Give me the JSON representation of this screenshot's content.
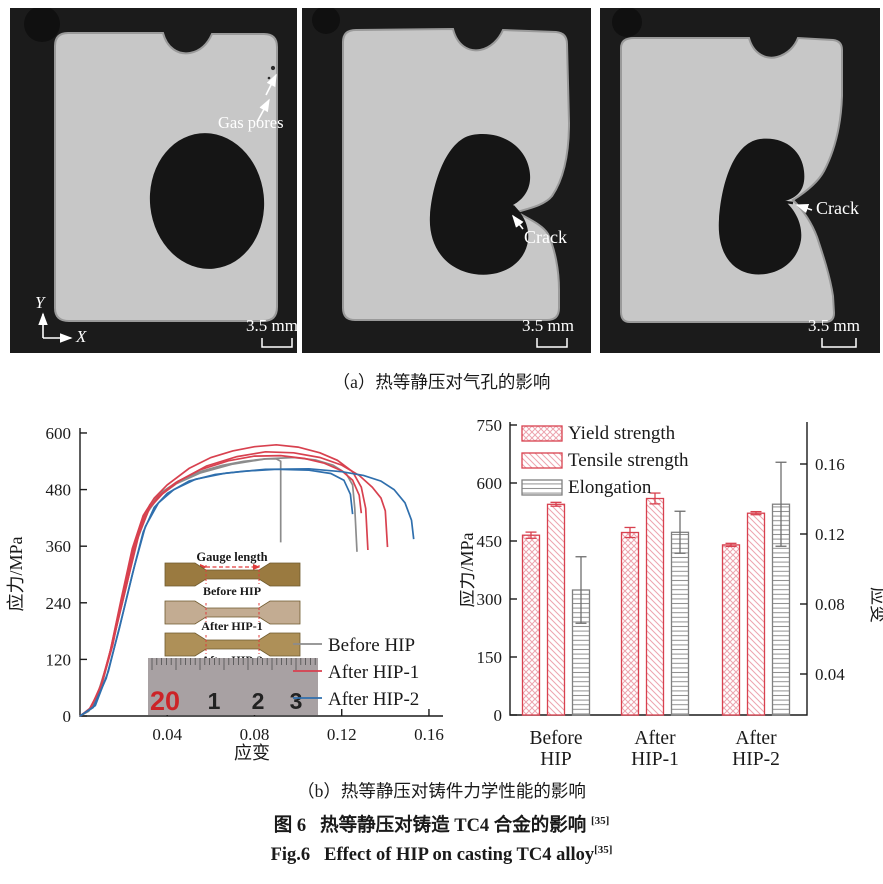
{
  "figure": {
    "captions": {
      "a": "（a）热等静压对气孔的影响",
      "b": "（b）热等静压对铸件力学性能的影响",
      "fig_cn": {
        "prefix": "图 6",
        "text": "热等静压对铸造 TC4 合金的影响",
        "ref": "[35]"
      },
      "fig_en": {
        "prefix": "Fig.6",
        "text": "Effect of HIP on casting TC4 alloy",
        "ref": "[35]"
      }
    }
  },
  "ct_panels": [
    {
      "name": "before-hip",
      "labels": {
        "gas_pores": "Gas pores"
      },
      "scale_bar": "3.5 mm",
      "axes": {
        "x": "X",
        "y": "Y"
      }
    },
    {
      "name": "after-hip-1",
      "labels": {
        "crack": "Crack"
      },
      "scale_bar": "3.5 mm"
    },
    {
      "name": "after-hip-2",
      "labels": {
        "crack": "Crack"
      },
      "scale_bar": "3.5 mm"
    }
  ],
  "inset": {
    "gauge_label": "Gauge length",
    "specimen_labels": [
      "Before HIP",
      "After HIP-1",
      "After HIP-2"
    ],
    "specimen_colors": [
      "#9a7a40",
      "#c3ac92",
      "#ae9058"
    ],
    "ruler_numbers": [
      "20",
      "1",
      "2",
      "3"
    ]
  },
  "chart_data": [
    {
      "type": "line",
      "title": "",
      "xlabel": "应变",
      "ylabel": "应力/MPa",
      "xlim": [
        0,
        0.165
      ],
      "ylim": [
        0,
        600
      ],
      "xticks": [
        0.04,
        0.08,
        0.12,
        0.16
      ],
      "yticks": [
        0,
        120,
        240,
        360,
        480,
        600
      ],
      "grid": false,
      "legend_position": "lower right",
      "series": [
        {
          "name": "Before HIP",
          "color": "#8c8c8c",
          "curves": [
            [
              [
                0,
                0
              ],
              [
                0.004,
                10
              ],
              [
                0.008,
                45
              ],
              [
                0.013,
                120
              ],
              [
                0.018,
                225
              ],
              [
                0.023,
                330
              ],
              [
                0.028,
                405
              ],
              [
                0.032,
                448
              ],
              [
                0.037,
                473
              ],
              [
                0.045,
                498
              ],
              [
                0.055,
                518
              ],
              [
                0.065,
                531
              ],
              [
                0.075,
                540
              ],
              [
                0.085,
                545
              ],
              [
                0.09,
                545
              ],
              [
                0.092,
                540
              ],
              [
                0.092,
                368
              ]
            ],
            [
              [
                0,
                0
              ],
              [
                0.005,
                15
              ],
              [
                0.01,
                65
              ],
              [
                0.015,
                155
              ],
              [
                0.021,
                270
              ],
              [
                0.026,
                370
              ],
              [
                0.031,
                432
              ],
              [
                0.036,
                465
              ],
              [
                0.044,
                492
              ],
              [
                0.055,
                515
              ],
              [
                0.07,
                534
              ],
              [
                0.085,
                545
              ],
              [
                0.098,
                548
              ],
              [
                0.108,
                543
              ],
              [
                0.116,
                532
              ],
              [
                0.122,
                514
              ],
              [
                0.125,
                490
              ],
              [
                0.126,
                440
              ],
              [
                0.127,
                348
              ]
            ]
          ]
        },
        {
          "name": "After HIP-1",
          "color": "#d8414f",
          "curves": [
            [
              [
                0,
                0
              ],
              [
                0.004,
                12
              ],
              [
                0.009,
                55
              ],
              [
                0.014,
                140
              ],
              [
                0.019,
                250
              ],
              [
                0.024,
                355
              ],
              [
                0.029,
                425
              ],
              [
                0.034,
                462
              ],
              [
                0.04,
                490
              ],
              [
                0.05,
                525
              ],
              [
                0.06,
                548
              ],
              [
                0.07,
                562
              ],
              [
                0.08,
                571
              ],
              [
                0.09,
                575
              ],
              [
                0.1,
                570
              ],
              [
                0.11,
                558
              ],
              [
                0.118,
                542
              ],
              [
                0.125,
                518
              ],
              [
                0.129,
                485
              ],
              [
                0.131,
                440
              ],
              [
                0.132,
                352
              ]
            ],
            [
              [
                0,
                0
              ],
              [
                0.005,
                18
              ],
              [
                0.01,
                70
              ],
              [
                0.016,
                175
              ],
              [
                0.022,
                290
              ],
              [
                0.027,
                385
              ],
              [
                0.032,
                442
              ],
              [
                0.038,
                472
              ],
              [
                0.046,
                500
              ],
              [
                0.058,
                530
              ],
              [
                0.072,
                550
              ],
              [
                0.085,
                560
              ],
              [
                0.098,
                558
              ],
              [
                0.11,
                548
              ],
              [
                0.12,
                532
              ],
              [
                0.128,
                510
              ],
              [
                0.134,
                485
              ],
              [
                0.138,
                462
              ],
              [
                0.14,
                435
              ],
              [
                0.141,
                358
              ]
            ],
            [
              [
                0,
                0
              ],
              [
                0.0045,
                14
              ],
              [
                0.0095,
                60
              ],
              [
                0.015,
                150
              ],
              [
                0.02,
                262
              ],
              [
                0.025,
                362
              ],
              [
                0.03,
                430
              ],
              [
                0.036,
                466
              ],
              [
                0.044,
                495
              ],
              [
                0.055,
                522
              ],
              [
                0.068,
                541
              ],
              [
                0.08,
                551
              ],
              [
                0.092,
                552
              ],
              [
                0.103,
                546
              ],
              [
                0.112,
                536
              ],
              [
                0.12,
                520
              ],
              [
                0.125,
                500
              ],
              [
                0.128,
                468
              ],
              [
                0.129,
                430
              ]
            ]
          ]
        },
        {
          "name": "After HIP-2",
          "color": "#2f6fad",
          "curves": [
            [
              [
                0,
                0
              ],
              [
                0.006,
                18
              ],
              [
                0.012,
                80
              ],
              [
                0.018,
                185
              ],
              [
                0.024,
                300
              ],
              [
                0.029,
                390
              ],
              [
                0.034,
                442
              ],
              [
                0.04,
                472
              ],
              [
                0.05,
                498
              ],
              [
                0.062,
                512
              ],
              [
                0.075,
                519
              ],
              [
                0.09,
                523
              ],
              [
                0.105,
                521
              ],
              [
                0.115,
                514
              ],
              [
                0.121,
                500
              ],
              [
                0.124,
                470
              ],
              [
                0.125,
                428
              ]
            ],
            [
              [
                0,
                0
              ],
              [
                0.007,
                22
              ],
              [
                0.013,
                95
              ],
              [
                0.019,
                205
              ],
              [
                0.025,
                318
              ],
              [
                0.03,
                402
              ],
              [
                0.036,
                452
              ],
              [
                0.043,
                480
              ],
              [
                0.053,
                502
              ],
              [
                0.067,
                515
              ],
              [
                0.085,
                523
              ],
              [
                0.105,
                524
              ],
              [
                0.12,
                518
              ],
              [
                0.13,
                510
              ],
              [
                0.138,
                498
              ],
              [
                0.144,
                480
              ],
              [
                0.149,
                452
              ],
              [
                0.152,
                415
              ],
              [
                0.153,
                375
              ]
            ]
          ]
        }
      ]
    },
    {
      "type": "bar",
      "categories": [
        [
          "Before",
          "HIP"
        ],
        [
          "After",
          "HIP-1"
        ],
        [
          "After",
          "HIP-2"
        ]
      ],
      "ylabel_left": "应力/MPa",
      "ylabel_right": "应变",
      "ylim_left": [
        0,
        750
      ],
      "yticks_left": [
        0,
        150,
        300,
        450,
        600,
        750
      ],
      "yticks_right": [
        0.04,
        0.08,
        0.12,
        0.16
      ],
      "legend_position": "upper left",
      "series": [
        {
          "name": "Yield strength",
          "axis": "left",
          "hatch": "cross",
          "edge_color": "#d8414f",
          "values": [
            465,
            472,
            440
          ],
          "errors": [
            8,
            13,
            4
          ]
        },
        {
          "name": "Tensile strength",
          "axis": "left",
          "hatch": "diagonal",
          "edge_color": "#d8414f",
          "values": [
            545,
            560,
            522
          ],
          "errors": [
            5,
            14,
            4
          ]
        },
        {
          "name": "Elongation",
          "axis": "right",
          "hatch": "horizontal",
          "edge_color": "#808080",
          "values": [
            0.088,
            0.121,
            0.137
          ],
          "errors": [
            0.019,
            0.012,
            0.024
          ]
        }
      ]
    }
  ]
}
